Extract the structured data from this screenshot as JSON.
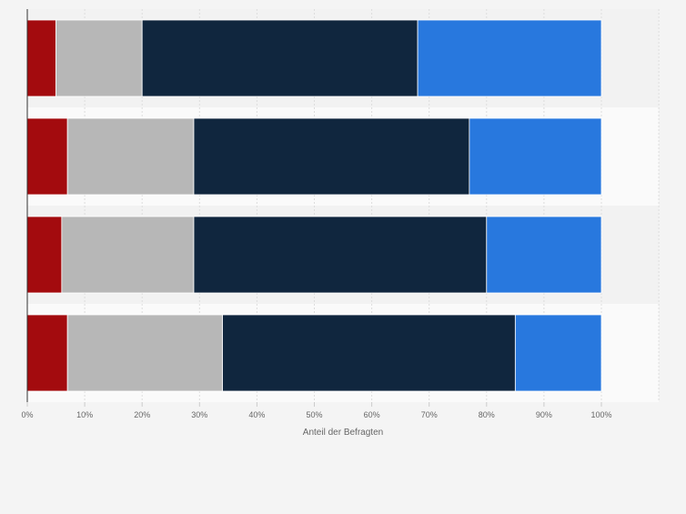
{
  "chart_data": {
    "type": "bar",
    "orientation": "horizontal",
    "stacked": true,
    "categories": [
      "",
      "",
      "",
      ""
    ],
    "series": [
      {
        "values": [
          5,
          7,
          6,
          7
        ],
        "color": "#a30b0e"
      },
      {
        "values": [
          15,
          22,
          23,
          27
        ],
        "color": "#b7b7b7"
      },
      {
        "values": [
          48,
          48,
          51,
          51
        ],
        "color": "#10263e"
      },
      {
        "values": [
          32,
          23,
          20,
          15
        ],
        "color": "#2878de"
      }
    ],
    "xlabel": "Anteil der Befragten",
    "xlim": [
      0,
      110
    ],
    "xticks": [
      {
        "value": 0,
        "label": "0%"
      },
      {
        "value": 10,
        "label": "10%"
      },
      {
        "value": 20,
        "label": "20%"
      },
      {
        "value": 30,
        "label": "30%"
      },
      {
        "value": 40,
        "label": "40%"
      },
      {
        "value": 50,
        "label": "50%"
      },
      {
        "value": 60,
        "label": "60%"
      },
      {
        "value": 70,
        "label": "70%"
      },
      {
        "value": 80,
        "label": "80%"
      },
      {
        "value": 90,
        "label": "90%"
      },
      {
        "value": 100,
        "label": "100%"
      }
    ],
    "grid": true,
    "legend": "none"
  }
}
